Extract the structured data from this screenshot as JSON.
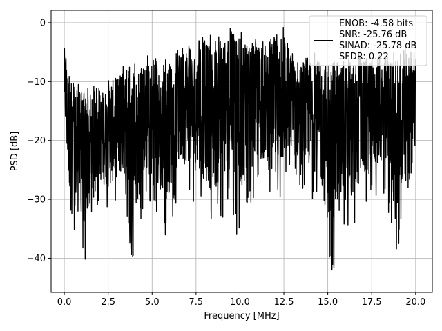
{
  "chart_data": {
    "type": "line",
    "title": "",
    "xlabel": "Frequency [MHz]",
    "ylabel": "PSD [dB]",
    "xlim": [
      -0.75,
      20.95
    ],
    "ylim": [
      -45.8,
      2.1
    ],
    "xticks": [
      0.0,
      2.5,
      5.0,
      7.5,
      10.0,
      12.5,
      15.0,
      17.5,
      20.0
    ],
    "xtick_labels": [
      "0.0",
      "2.5",
      "5.0",
      "7.5",
      "10.0",
      "12.5",
      "15.0",
      "17.5",
      "20.0"
    ],
    "yticks": [
      0,
      -10,
      -20,
      -30,
      -40
    ],
    "ytick_labels": [
      "0",
      "−10",
      "−20",
      "−30",
      "−40"
    ],
    "grid": true,
    "legend_position": "upper-right",
    "series": [
      {
        "name": "ENOB: -4.58 bits\nSNR: -25.76 dB\nSINAD: -25.78 dB\nSFDR: 0.22",
        "color": "#000000",
        "x": [
          0.0,
          20.0
        ],
        "y_upper_envelope": [
          [
            0.0,
            -3.5
          ],
          [
            0.5,
            -9.5
          ],
          [
            1.0,
            -10.5
          ],
          [
            1.5,
            -10.0
          ],
          [
            2.0,
            -11.0
          ],
          [
            2.5,
            -9.5
          ],
          [
            3.0,
            -8.0
          ],
          [
            3.5,
            -6.5
          ],
          [
            4.0,
            -7.0
          ],
          [
            4.5,
            -6.0
          ],
          [
            5.0,
            -5.0
          ],
          [
            5.5,
            -7.0
          ],
          [
            6.0,
            -5.0
          ],
          [
            6.5,
            -4.5
          ],
          [
            7.0,
            -3.0
          ],
          [
            7.5,
            -3.5
          ],
          [
            8.0,
            -1.5
          ],
          [
            8.5,
            -2.5
          ],
          [
            9.0,
            -1.5
          ],
          [
            9.5,
            -0.5
          ],
          [
            10.0,
            -1.0
          ],
          [
            10.5,
            -3.0
          ],
          [
            11.0,
            -2.0
          ],
          [
            11.5,
            -4.0
          ],
          [
            12.0,
            -1.0
          ],
          [
            12.5,
            -0.5
          ],
          [
            13.0,
            -5.0
          ],
          [
            13.5,
            -5.0
          ],
          [
            14.0,
            -4.5
          ],
          [
            14.5,
            -5.5
          ],
          [
            15.0,
            -5.0
          ],
          [
            15.5,
            -6.5
          ],
          [
            16.0,
            -5.5
          ],
          [
            16.5,
            -6.0
          ],
          [
            17.0,
            -5.0
          ],
          [
            17.5,
            -6.0
          ],
          [
            18.0,
            -4.5
          ],
          [
            18.5,
            -4.0
          ],
          [
            19.0,
            -5.0
          ],
          [
            19.5,
            -4.0
          ],
          [
            20.0,
            -4.5
          ]
        ],
        "y_lower_envelope": [
          [
            0.0,
            -18.0
          ],
          [
            0.2,
            -31.5
          ],
          [
            0.5,
            -36.0
          ],
          [
            0.8,
            -38.0
          ],
          [
            1.0,
            -38.5
          ],
          [
            1.2,
            -43.0
          ],
          [
            1.5,
            -33.0
          ],
          [
            2.0,
            -31.0
          ],
          [
            2.5,
            -33.0
          ],
          [
            3.0,
            -31.0
          ],
          [
            3.5,
            -31.0
          ],
          [
            3.8,
            -41.0
          ],
          [
            4.2,
            -37.0
          ],
          [
            4.5,
            -31.0
          ],
          [
            5.0,
            -33.0
          ],
          [
            5.8,
            -36.5
          ],
          [
            6.5,
            -30.0
          ],
          [
            7.0,
            -29.0
          ],
          [
            7.5,
            -31.0
          ],
          [
            8.4,
            -35.5
          ],
          [
            8.8,
            -34.5
          ],
          [
            9.5,
            -31.0
          ],
          [
            9.9,
            -38.0
          ],
          [
            10.5,
            -31.0
          ],
          [
            11.0,
            -29.0
          ],
          [
            11.5,
            -29.0
          ],
          [
            12.1,
            -36.5
          ],
          [
            12.5,
            -29.0
          ],
          [
            13.0,
            -27.0
          ],
          [
            13.5,
            -29.0
          ],
          [
            14.0,
            -30.0
          ],
          [
            14.5,
            -31.0
          ],
          [
            15.1,
            -43.5
          ],
          [
            15.5,
            -40.5
          ],
          [
            16.0,
            -37.5
          ],
          [
            16.5,
            -35.5
          ],
          [
            17.0,
            -32.0
          ],
          [
            17.5,
            -30.5
          ],
          [
            18.0,
            -28.5
          ],
          [
            18.5,
            -33.0
          ],
          [
            18.9,
            -42.0
          ],
          [
            19.5,
            -29.0
          ],
          [
            20.0,
            -23.0
          ]
        ]
      }
    ]
  }
}
